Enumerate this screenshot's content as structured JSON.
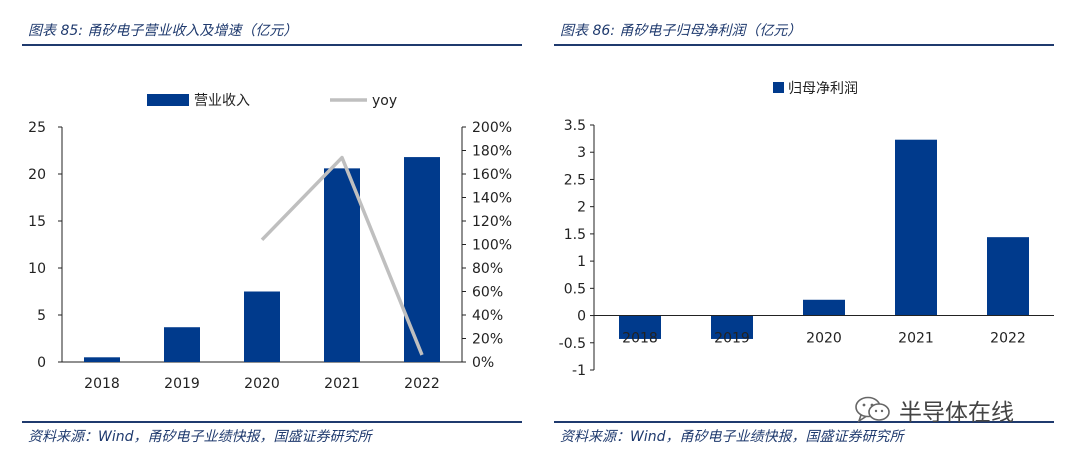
{
  "charts": [
    {
      "fig_title": "图表 85:  甬矽电子营业收入及增速（亿元）",
      "source": "资料来源：Wind，甬矽电子业绩快报，国盛证券研究所"
    },
    {
      "fig_title": "图表 86:  甬矽电子归母净利润（亿元）",
      "source": "资料来源：Wind，甬矽电子业绩快报，国盛证券研究所"
    }
  ],
  "watermark": {
    "text": "半导体在线",
    "icon": "wechat-icon"
  },
  "colors": {
    "bar": "#003a8c",
    "line": "#bfbfbf",
    "title": "#1f3a6e"
  },
  "chart_data": [
    {
      "type": "bar+line",
      "title": "甬矽电子营业收入及增速（亿元）",
      "categories": [
        "2018",
        "2019",
        "2020",
        "2021",
        "2022"
      ],
      "series": [
        {
          "name": "营业收入",
          "type": "bar",
          "axis": "left",
          "values": [
            0.5,
            3.7,
            7.5,
            20.6,
            21.8
          ]
        },
        {
          "name": "yoy",
          "type": "line",
          "axis": "right",
          "values": [
            null,
            null,
            1.04,
            1.74,
            0.06
          ]
        }
      ],
      "y_left": {
        "min": 0,
        "max": 25,
        "ticks": [
          "0",
          "5",
          "10",
          "15",
          "20",
          "25"
        ],
        "tick_values": [
          0,
          5,
          10,
          15,
          20,
          25
        ]
      },
      "y_right": {
        "min": 0,
        "max": 2,
        "ticks": [
          "0%",
          "20%",
          "40%",
          "60%",
          "80%",
          "100%",
          "120%",
          "140%",
          "160%",
          "180%",
          "200%"
        ],
        "tick_values": [
          0,
          0.2,
          0.4,
          0.6,
          0.8,
          1.0,
          1.2,
          1.4,
          1.6,
          1.8,
          2.0
        ]
      },
      "legend": {
        "position": "top",
        "items": [
          "营业收入",
          "yoy"
        ]
      }
    },
    {
      "type": "bar",
      "title": "甬矽电子归母净利润（亿元）",
      "categories": [
        "2018",
        "2019",
        "2020",
        "2021",
        "2022"
      ],
      "series": [
        {
          "name": "归母净利润",
          "type": "bar",
          "values": [
            -0.43,
            -0.43,
            0.29,
            3.23,
            1.44
          ]
        }
      ],
      "y": {
        "min": -1,
        "max": 3.5,
        "ticks": [
          "-1",
          "-0.5",
          "0",
          "0.5",
          "1",
          "1.5",
          "2",
          "2.5",
          "3",
          "3.5"
        ],
        "tick_values": [
          -1,
          -0.5,
          0,
          0.5,
          1,
          1.5,
          2,
          2.5,
          3,
          3.5
        ]
      },
      "legend": {
        "position": "top",
        "items": [
          "归母净利润"
        ]
      }
    }
  ]
}
